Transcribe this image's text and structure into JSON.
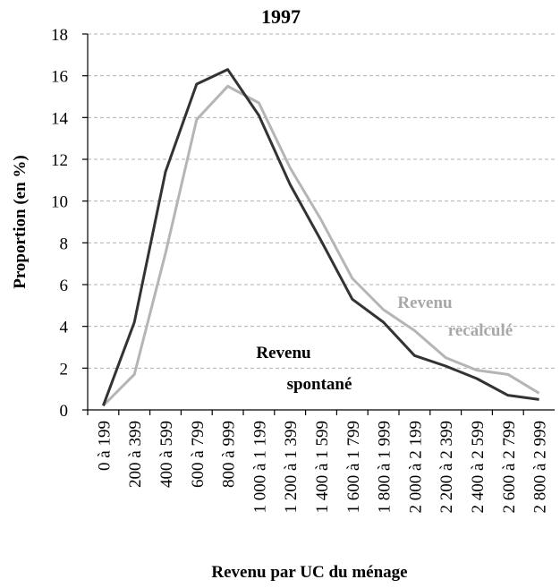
{
  "chart_data": {
    "type": "line",
    "title": "1997",
    "y_label": "Proportion (en %)",
    "x_label": "Revenu par UC du ménage",
    "categories": [
      "0 à 199",
      "200 à 399",
      "400 à 599",
      "600 à 799",
      "800 à 999",
      "1 000 à 1 199",
      "1 200 à 1 399",
      "1 400 à 1 599",
      "1 600 à 1 799",
      "1 800 à 1 999",
      "2 000 à 2 199",
      "2 200 à 2 399",
      "2 400 à 2 599",
      "2 600 à 2 799",
      "2 800 à 2 999"
    ],
    "series": [
      {
        "name": "Revenu recalculé",
        "color": "#b5b5b5",
        "values": [
          0.2,
          1.7,
          7.5,
          13.9,
          15.5,
          14.7,
          11.6,
          9.1,
          6.3,
          4.8,
          3.8,
          2.5,
          1.9,
          1.7,
          0.8
        ]
      },
      {
        "name": "Revenu spontané",
        "color": "#333333",
        "values": [
          0.2,
          4.2,
          11.4,
          15.6,
          16.3,
          14.1,
          10.8,
          8.1,
          5.3,
          4.2,
          2.6,
          2.1,
          1.5,
          0.7,
          0.5
        ]
      }
    ],
    "annotations": [
      {
        "lines": [
          "Revenu",
          "spontané"
        ],
        "color": "#000000"
      },
      {
        "lines": [
          "Revenu",
          "recalculé"
        ],
        "color": "#a8a8a8"
      }
    ],
    "ylim": [
      0,
      18
    ],
    "yticks": [
      0,
      2,
      4,
      6,
      8,
      10,
      12,
      14,
      16,
      18
    ],
    "grid": true
  }
}
